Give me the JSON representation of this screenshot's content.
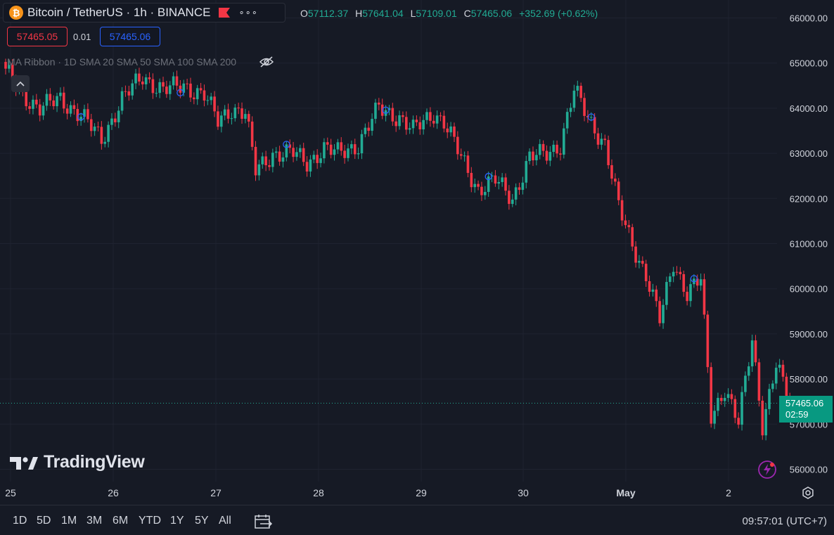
{
  "header": {
    "symbol_title": "Bitcoin / TetherUS · 1h · BINANCE",
    "btc_glyph": "₿",
    "more_glyph": "∘∘∘",
    "ohlc": [
      {
        "label": "O",
        "value": "57112.37"
      },
      {
        "label": "H",
        "value": "57641.04"
      },
      {
        "label": "L",
        "value": "57109.01"
      },
      {
        "label": "C",
        "value": "57465.06"
      }
    ],
    "change": "+352.69 (+0.62%)"
  },
  "trade": {
    "sell": "57465.05",
    "spread": "0.01",
    "buy": "57465.06"
  },
  "indicator": {
    "legend": "MA Ribbon · 1D SMA 20 SMA 50 SMA 100 SMA 200"
  },
  "logo": {
    "text": "TradingView"
  },
  "price_tag": {
    "price": "57465.06",
    "countdown": "02:59"
  },
  "bottom_bar": {
    "ranges": [
      "1D",
      "5D",
      "1M",
      "3M",
      "6M",
      "YTD",
      "1Y",
      "5Y",
      "All"
    ],
    "clock": "09:57:01 (UTC+7)"
  },
  "colors": {
    "up": "#22ab94",
    "down": "#f23645",
    "background": "#161a25",
    "grid": "#1f2330",
    "accent": "#2962ff"
  },
  "icons": [
    "bitcoin-icon",
    "flag-icon",
    "more-icon",
    "eye-crossed-icon",
    "chevron-up-icon",
    "calendar-goto-icon",
    "gear-icon",
    "lightning-icon"
  ],
  "chart_data": {
    "type": "candlestick",
    "title": "Bitcoin / TetherUS · 1h · BINANCE",
    "x_tick_labels": [
      "25",
      "26",
      "27",
      "28",
      "29",
      "30",
      "May",
      "2"
    ],
    "y_tick_labels": [
      "56000.00",
      "57000.00",
      "58000.00",
      "59000.00",
      "60000.00",
      "61000.00",
      "62000.00",
      "63000.00",
      "64000.00",
      "65000.00",
      "66000.00"
    ],
    "ylim": [
      55800,
      66300
    ],
    "y_ticks": [
      56000,
      57000,
      58000,
      59000,
      60000,
      61000,
      62000,
      63000,
      64000,
      65000,
      66000
    ],
    "last_price": 57465.06,
    "anchors": [
      {
        "t": 0,
        "p": 64800
      },
      {
        "t": 5,
        "p": 64300
      },
      {
        "t": 10,
        "p": 64000
      },
      {
        "t": 16,
        "p": 64200
      },
      {
        "t": 22,
        "p": 63850
      },
      {
        "t": 28,
        "p": 63300
      },
      {
        "t": 34,
        "p": 64200
      },
      {
        "t": 40,
        "p": 64700
      },
      {
        "t": 46,
        "p": 64400
      },
      {
        "t": 52,
        "p": 64500
      },
      {
        "t": 58,
        "p": 64300
      },
      {
        "t": 62,
        "p": 63700
      },
      {
        "t": 66,
        "p": 64000
      },
      {
        "t": 70,
        "p": 63900
      },
      {
        "t": 73,
        "p": 62600
      },
      {
        "t": 78,
        "p": 63000
      },
      {
        "t": 84,
        "p": 63000
      },
      {
        "t": 88,
        "p": 62800
      },
      {
        "t": 93,
        "p": 63100
      },
      {
        "t": 97,
        "p": 63000
      },
      {
        "t": 103,
        "p": 63200
      },
      {
        "t": 109,
        "p": 64000
      },
      {
        "t": 115,
        "p": 63800
      },
      {
        "t": 119,
        "p": 63500
      },
      {
        "t": 125,
        "p": 63900
      },
      {
        "t": 128,
        "p": 63700
      },
      {
        "t": 133,
        "p": 62900
      },
      {
        "t": 138,
        "p": 62200
      },
      {
        "t": 143,
        "p": 62400
      },
      {
        "t": 148,
        "p": 62000
      },
      {
        "t": 153,
        "p": 62900
      },
      {
        "t": 158,
        "p": 63000
      },
      {
        "t": 162,
        "p": 63200
      },
      {
        "t": 166,
        "p": 64400
      },
      {
        "t": 170,
        "p": 63800
      },
      {
        "t": 175,
        "p": 63200
      },
      {
        "t": 179,
        "p": 61800
      },
      {
        "t": 183,
        "p": 61000
      },
      {
        "t": 187,
        "p": 60300
      },
      {
        "t": 191,
        "p": 59300
      },
      {
        "t": 195,
        "p": 60600
      },
      {
        "t": 199,
        "p": 59900
      },
      {
        "t": 203,
        "p": 60200
      },
      {
        "t": 206,
        "p": 57200
      },
      {
        "t": 210,
        "p": 57800
      },
      {
        "t": 214,
        "p": 57000
      },
      {
        "t": 218,
        "p": 58900
      },
      {
        "t": 221,
        "p": 57000
      },
      {
        "t": 225,
        "p": 58300
      },
      {
        "t": 229,
        "p": 57465
      }
    ]
  }
}
